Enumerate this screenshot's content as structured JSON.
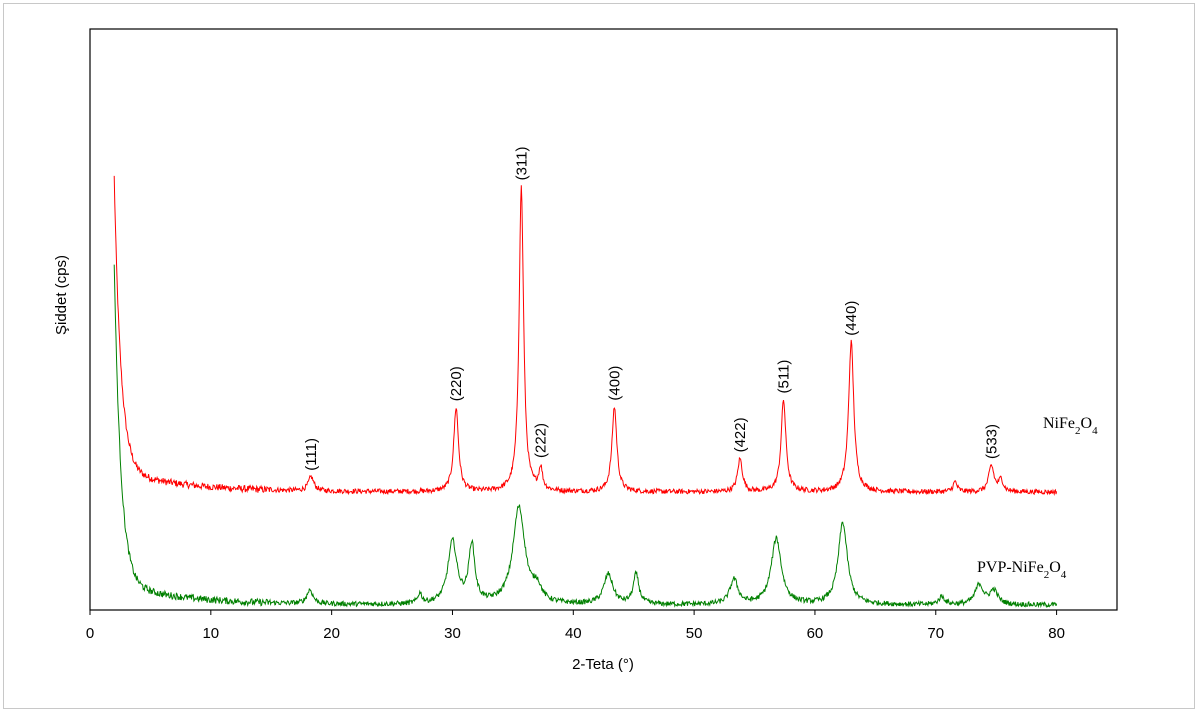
{
  "chart_data": {
    "type": "line",
    "xlabel": "2-Teta (°)",
    "ylabel": "Şiddet (cps)",
    "xlim": [
      0,
      85
    ],
    "xticks": [
      "0",
      "10",
      "20",
      "30",
      "40",
      "50",
      "60",
      "70",
      "80"
    ],
    "yticks": [],
    "grid": false,
    "series": [
      {
        "name": "NiFe2O4",
        "label_main": "NiFe",
        "label_sub1": "2",
        "label_mid": "O",
        "label_sub2": "4",
        "color": "#ff0000",
        "x_range": [
          2,
          80
        ],
        "baseline_end": 8,
        "start_value": 293,
        "peaks": [
          {
            "x": 18.3,
            "h": 14,
            "w": 0.28
          },
          {
            "x": 30.3,
            "h": 84,
            "w": 0.24
          },
          {
            "x": 35.7,
            "h": 305,
            "w": 0.22
          },
          {
            "x": 37.3,
            "h": 22,
            "w": 0.18
          },
          {
            "x": 43.4,
            "h": 85,
            "w": 0.24
          },
          {
            "x": 53.8,
            "h": 33,
            "w": 0.24
          },
          {
            "x": 57.4,
            "h": 92,
            "w": 0.24
          },
          {
            "x": 63.0,
            "h": 150,
            "w": 0.26
          },
          {
            "x": 71.6,
            "h": 10,
            "w": 0.2
          },
          {
            "x": 74.6,
            "h": 26,
            "w": 0.26
          },
          {
            "x": 75.4,
            "h": 12,
            "w": 0.22
          }
        ],
        "annotations": [
          {
            "text": "(111)",
            "x": 18.3
          },
          {
            "text": "(220)",
            "x": 30.3
          },
          {
            "text": "(311)",
            "x": 35.7
          },
          {
            "text": "(222)",
            "x": 37.3
          },
          {
            "text": "(400)",
            "x": 43.4
          },
          {
            "text": "(422)",
            "x": 53.8
          },
          {
            "text": "(511)",
            "x": 57.4
          },
          {
            "text": "(440)",
            "x": 63.0
          },
          {
            "text": "(533)",
            "x": 74.6
          }
        ]
      },
      {
        "name": "PVP-NiFe2O4",
        "label_main": "PVP-NiFe",
        "label_sub1": "2",
        "label_mid": "O",
        "label_sub2": "4",
        "color": "#008000",
        "x_range": [
          2,
          80
        ],
        "baseline_end": 4,
        "start_value": 320,
        "peaks": [
          {
            "x": 18.2,
            "h": 14,
            "w": 0.3
          },
          {
            "x": 27.3,
            "h": 10,
            "w": 0.2
          },
          {
            "x": 30.0,
            "h": 62,
            "w": 0.45
          },
          {
            "x": 31.6,
            "h": 58,
            "w": 0.3
          },
          {
            "x": 35.5,
            "h": 97,
            "w": 0.6
          },
          {
            "x": 37.0,
            "h": 14,
            "w": 0.4
          },
          {
            "x": 42.9,
            "h": 30,
            "w": 0.45
          },
          {
            "x": 45.2,
            "h": 30,
            "w": 0.28
          },
          {
            "x": 53.3,
            "h": 25,
            "w": 0.4
          },
          {
            "x": 56.8,
            "h": 66,
            "w": 0.5
          },
          {
            "x": 62.3,
            "h": 82,
            "w": 0.45
          },
          {
            "x": 70.5,
            "h": 8,
            "w": 0.3
          },
          {
            "x": 73.6,
            "h": 20,
            "w": 0.4
          },
          {
            "x": 74.8,
            "h": 14,
            "w": 0.4
          }
        ]
      }
    ]
  }
}
